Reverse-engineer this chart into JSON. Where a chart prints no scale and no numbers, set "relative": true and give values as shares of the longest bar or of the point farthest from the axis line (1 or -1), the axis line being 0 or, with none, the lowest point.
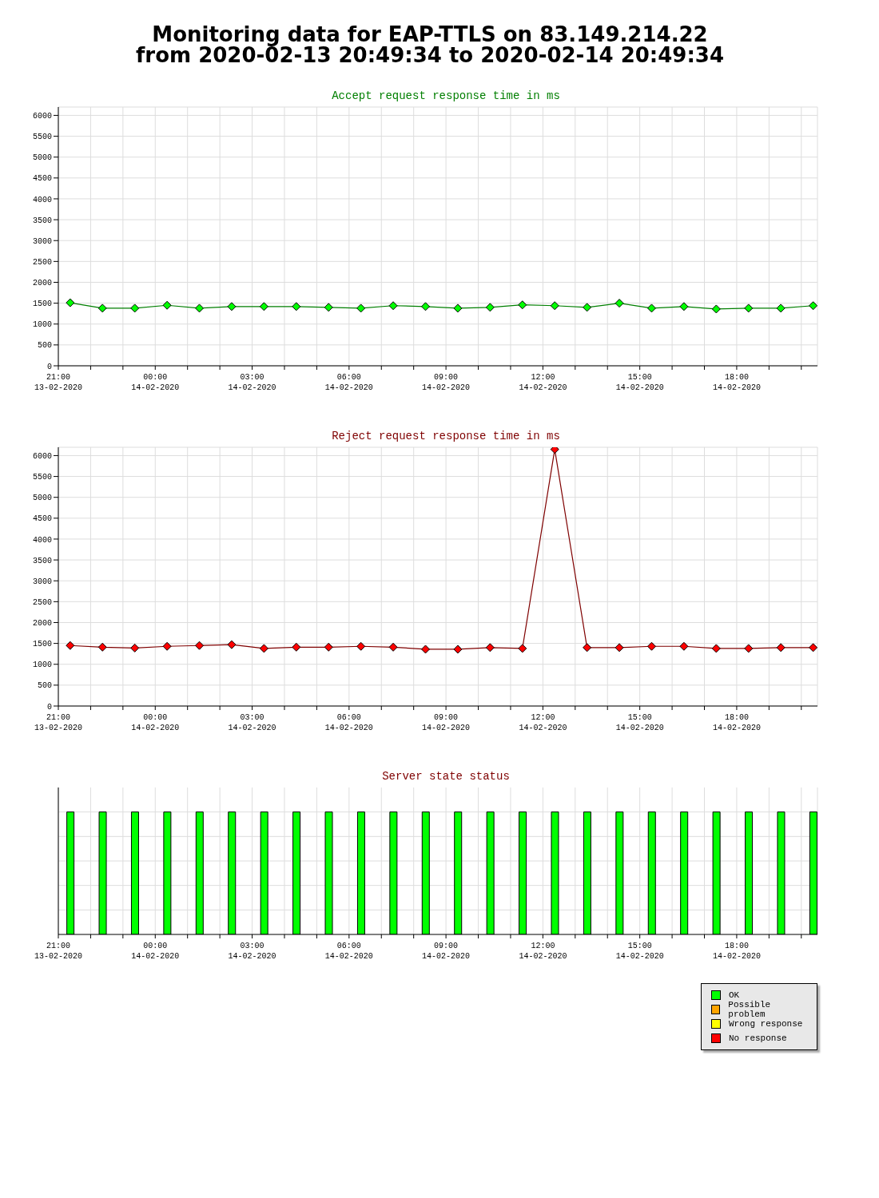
{
  "chart_data": [
    {
      "type": "line",
      "title": "Monitoring data for EAP-TTLS on 83.149.214.22\nfrom 2020-02-13 20:49:34 to 2020-02-14 20:49:34",
      "subtitle": "Accept request response time in ms",
      "marker": "diamond",
      "grid": true,
      "legend": false,
      "x": [
        "2020-02-13T21:22",
        "2020-02-13T22:22",
        "2020-02-13T23:22",
        "2020-02-14T00:22",
        "2020-02-14T01:22",
        "2020-02-14T02:22",
        "2020-02-14T03:22",
        "2020-02-14T04:22",
        "2020-02-14T05:22",
        "2020-02-14T06:22",
        "2020-02-14T07:22",
        "2020-02-14T08:22",
        "2020-02-14T09:22",
        "2020-02-14T10:22",
        "2020-02-14T11:22",
        "2020-02-14T12:22",
        "2020-02-14T13:22",
        "2020-02-14T14:22",
        "2020-02-14T15:22",
        "2020-02-14T16:22",
        "2020-02-14T17:22",
        "2020-02-14T18:22",
        "2020-02-14T19:22",
        "2020-02-14T20:22"
      ],
      "series": [
        {
          "color": "#00ff00",
          "values": [
            1510,
            1380,
            1380,
            1450,
            1380,
            1420,
            1420,
            1420,
            1400,
            1380,
            1440,
            1420,
            1380,
            1400,
            1460,
            1440,
            1400,
            1500,
            1380,
            1420,
            1360,
            1380,
            1380,
            1440
          ]
        }
      ],
      "xlim": [
        "2020-02-13T21:00",
        "2020-02-14T20:30"
      ],
      "ylim": [
        0,
        6200
      ],
      "yticks": [
        0,
        500,
        1000,
        1500,
        2000,
        2500,
        3000,
        3500,
        4000,
        4500,
        5000,
        5500,
        6000
      ],
      "xticks": [
        {
          "value": "2020-02-13T21:00",
          "label": "21:00\n13-02-2020"
        },
        {
          "value": "2020-02-13T22:00",
          "label": null
        },
        {
          "value": "2020-02-13T23:00",
          "label": null
        },
        {
          "value": "2020-02-14T00:00",
          "label": "00:00\n14-02-2020"
        },
        {
          "value": "2020-02-14T01:00",
          "label": null
        },
        {
          "value": "2020-02-14T02:00",
          "label": null
        },
        {
          "value": "2020-02-14T03:00",
          "label": "03:00\n14-02-2020"
        },
        {
          "value": "2020-02-14T04:00",
          "label": null
        },
        {
          "value": "2020-02-14T05:00",
          "label": null
        },
        {
          "value": "2020-02-14T06:00",
          "label": "06:00\n14-02-2020"
        },
        {
          "value": "2020-02-14T07:00",
          "label": null
        },
        {
          "value": "2020-02-14T08:00",
          "label": null
        },
        {
          "value": "2020-02-14T09:00",
          "label": "09:00\n14-02-2020"
        },
        {
          "value": "2020-02-14T10:00",
          "label": null
        },
        {
          "value": "2020-02-14T11:00",
          "label": null
        },
        {
          "value": "2020-02-14T12:00",
          "label": "12:00\n14-02-2020"
        },
        {
          "value": "2020-02-14T13:00",
          "label": null
        },
        {
          "value": "2020-02-14T14:00",
          "label": null
        },
        {
          "value": "2020-02-14T15:00",
          "label": "15:00\n14-02-2020"
        },
        {
          "value": "2020-02-14T16:00",
          "label": null
        },
        {
          "value": "2020-02-14T17:00",
          "label": null
        },
        {
          "value": "2020-02-14T18:00",
          "label": "18:00\n14-02-2020"
        },
        {
          "value": "2020-02-14T19:00",
          "label": null
        },
        {
          "value": "2020-02-14T20:00",
          "label": null
        }
      ]
    },
    {
      "type": "line",
      "title": "Reject request response time in ms",
      "marker": "diamond",
      "grid": true,
      "legend": false,
      "x": [
        "2020-02-13T21:22",
        "2020-02-13T22:22",
        "2020-02-13T23:22",
        "2020-02-14T00:22",
        "2020-02-14T01:22",
        "2020-02-14T02:22",
        "2020-02-14T03:22",
        "2020-02-14T04:22",
        "2020-02-14T05:22",
        "2020-02-14T06:22",
        "2020-02-14T07:22",
        "2020-02-14T08:22",
        "2020-02-14T09:22",
        "2020-02-14T10:22",
        "2020-02-14T11:22",
        "2020-02-14T12:22",
        "2020-02-14T13:22",
        "2020-02-14T14:22",
        "2020-02-14T15:22",
        "2020-02-14T16:22",
        "2020-02-14T17:22",
        "2020-02-14T18:22",
        "2020-02-14T19:22",
        "2020-02-14T20:22"
      ],
      "series": [
        {
          "color": "#ff0000",
          "values": [
            1450,
            1410,
            1390,
            1430,
            1450,
            1470,
            1380,
            1410,
            1410,
            1430,
            1410,
            1360,
            1360,
            1400,
            1380,
            6150,
            1400,
            1400,
            1430,
            1430,
            1380,
            1380,
            1400,
            1400
          ]
        }
      ],
      "xlim": [
        "2020-02-13T21:00",
        "2020-02-14T20:30"
      ],
      "ylim": [
        0,
        6200
      ],
      "yticks": [
        0,
        500,
        1000,
        1500,
        2000,
        2500,
        3000,
        3500,
        4000,
        4500,
        5000,
        5500,
        6000
      ],
      "xticks": [
        {
          "value": "2020-02-13T21:00",
          "label": "21:00\n13-02-2020"
        },
        {
          "value": "2020-02-13T22:00",
          "label": null
        },
        {
          "value": "2020-02-13T23:00",
          "label": null
        },
        {
          "value": "2020-02-14T00:00",
          "label": "00:00\n14-02-2020"
        },
        {
          "value": "2020-02-14T01:00",
          "label": null
        },
        {
          "value": "2020-02-14T02:00",
          "label": null
        },
        {
          "value": "2020-02-14T03:00",
          "label": "03:00\n14-02-2020"
        },
        {
          "value": "2020-02-14T04:00",
          "label": null
        },
        {
          "value": "2020-02-14T05:00",
          "label": null
        },
        {
          "value": "2020-02-14T06:00",
          "label": "06:00\n14-02-2020"
        },
        {
          "value": "2020-02-14T07:00",
          "label": null
        },
        {
          "value": "2020-02-14T08:00",
          "label": null
        },
        {
          "value": "2020-02-14T09:00",
          "label": "09:00\n14-02-2020"
        },
        {
          "value": "2020-02-14T10:00",
          "label": null
        },
        {
          "value": "2020-02-14T11:00",
          "label": null
        },
        {
          "value": "2020-02-14T12:00",
          "label": "12:00\n14-02-2020"
        },
        {
          "value": "2020-02-14T13:00",
          "label": null
        },
        {
          "value": "2020-02-14T14:00",
          "label": null
        },
        {
          "value": "2020-02-14T15:00",
          "label": "15:00\n14-02-2020"
        },
        {
          "value": "2020-02-14T16:00",
          "label": null
        },
        {
          "value": "2020-02-14T17:00",
          "label": null
        },
        {
          "value": "2020-02-14T18:00",
          "label": "18:00\n14-02-2020"
        },
        {
          "value": "2020-02-14T19:00",
          "label": null
        },
        {
          "value": "2020-02-14T20:00",
          "label": null
        }
      ]
    },
    {
      "type": "bar",
      "title": "Server state status",
      "relative": true,
      "stacked": true,
      "grid": true,
      "legend": "bottom right",
      "tick_labels": "x",
      "x": [
        "2020-02-13T21:22",
        "2020-02-13T22:22",
        "2020-02-13T23:22",
        "2020-02-14T00:22",
        "2020-02-14T01:22",
        "2020-02-14T02:22",
        "2020-02-14T03:22",
        "2020-02-14T04:22",
        "2020-02-14T05:22",
        "2020-02-14T06:22",
        "2020-02-14T07:22",
        "2020-02-14T08:22",
        "2020-02-14T09:22",
        "2020-02-14T10:22",
        "2020-02-14T11:22",
        "2020-02-14T12:22",
        "2020-02-14T13:22",
        "2020-02-14T14:22",
        "2020-02-14T15:22",
        "2020-02-14T16:22",
        "2020-02-14T17:22",
        "2020-02-14T18:22",
        "2020-02-14T19:22",
        "2020-02-14T20:22"
      ],
      "series": [
        {
          "name": "OK",
          "color": "#00ff00",
          "values": [
            1,
            1,
            1,
            1,
            1,
            1,
            1,
            1,
            1,
            1,
            1,
            1,
            1,
            1,
            1,
            1,
            1,
            1,
            1,
            1,
            1,
            1,
            1,
            1
          ]
        },
        {
          "name": "Possible problem",
          "color": "#ffa500",
          "values": [
            0,
            0,
            0,
            0,
            0,
            0,
            0,
            0,
            0,
            0,
            0,
            0,
            0,
            0,
            0,
            0,
            0,
            0,
            0,
            0,
            0,
            0,
            0,
            0
          ]
        },
        {
          "name": "Wrong response",
          "color": "#ffff00",
          "values": [
            0,
            0,
            0,
            0,
            0,
            0,
            0,
            0,
            0,
            0,
            0,
            0,
            0,
            0,
            0,
            0,
            0,
            0,
            0,
            0,
            0,
            0,
            0,
            0
          ]
        },
        {
          "name": "No response",
          "color": "#ff0000",
          "values": [
            0,
            0,
            0,
            0,
            0,
            0,
            0,
            0,
            0,
            0,
            0,
            0,
            0,
            0,
            0,
            0,
            0,
            0,
            0,
            0,
            0,
            0,
            0,
            0
          ]
        }
      ],
      "xlim": [
        "2020-02-13T21:00",
        "2020-02-14T20:30"
      ],
      "xticks": [
        {
          "value": "2020-02-13T21:00",
          "label": "21:00\n13-02-2020"
        },
        {
          "value": "2020-02-13T22:00",
          "label": null
        },
        {
          "value": "2020-02-13T23:00",
          "label": null
        },
        {
          "value": "2020-02-14T00:00",
          "label": "00:00\n14-02-2020"
        },
        {
          "value": "2020-02-14T01:00",
          "label": null
        },
        {
          "value": "2020-02-14T02:00",
          "label": null
        },
        {
          "value": "2020-02-14T03:00",
          "label": "03:00\n14-02-2020"
        },
        {
          "value": "2020-02-14T04:00",
          "label": null
        },
        {
          "value": "2020-02-14T05:00",
          "label": null
        },
        {
          "value": "2020-02-14T06:00",
          "label": "06:00\n14-02-2020"
        },
        {
          "value": "2020-02-14T07:00",
          "label": null
        },
        {
          "value": "2020-02-14T08:00",
          "label": null
        },
        {
          "value": "2020-02-14T09:00",
          "label": "09:00\n14-02-2020"
        },
        {
          "value": "2020-02-14T10:00",
          "label": null
        },
        {
          "value": "2020-02-14T11:00",
          "label": null
        },
        {
          "value": "2020-02-14T12:00",
          "label": "12:00\n14-02-2020"
        },
        {
          "value": "2020-02-14T13:00",
          "label": null
        },
        {
          "value": "2020-02-14T14:00",
          "label": null
        },
        {
          "value": "2020-02-14T15:00",
          "label": "15:00\n14-02-2020"
        },
        {
          "value": "2020-02-14T16:00",
          "label": null
        },
        {
          "value": "2020-02-14T17:00",
          "label": null
        },
        {
          "value": "2020-02-14T18:00",
          "label": "18:00\n14-02-2020"
        },
        {
          "value": "2020-02-14T19:00",
          "label": null
        },
        {
          "value": "2020-02-14T20:00",
          "label": null
        }
      ]
    }
  ]
}
